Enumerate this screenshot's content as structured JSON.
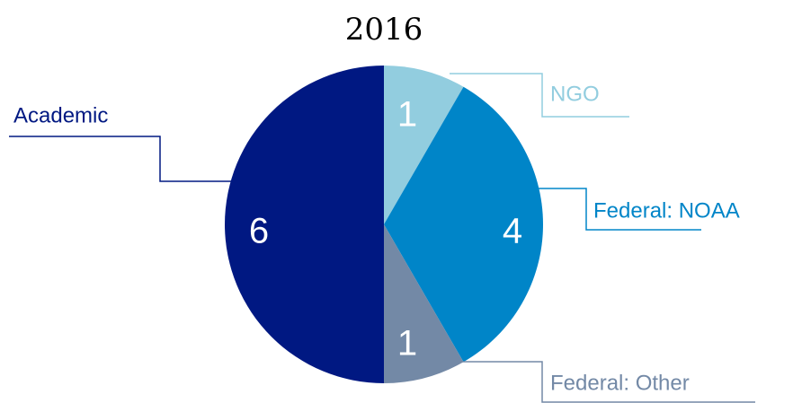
{
  "chart_data": {
    "type": "pie",
    "title": "2016",
    "categories": [
      "NGO",
      "Federal: NOAA",
      "Federal: Other",
      "Academic"
    ],
    "values": [
      1,
      4,
      1,
      6
    ],
    "colors": [
      "#92cddf",
      "#0085c8",
      "#7389a6",
      "#001882"
    ]
  }
}
